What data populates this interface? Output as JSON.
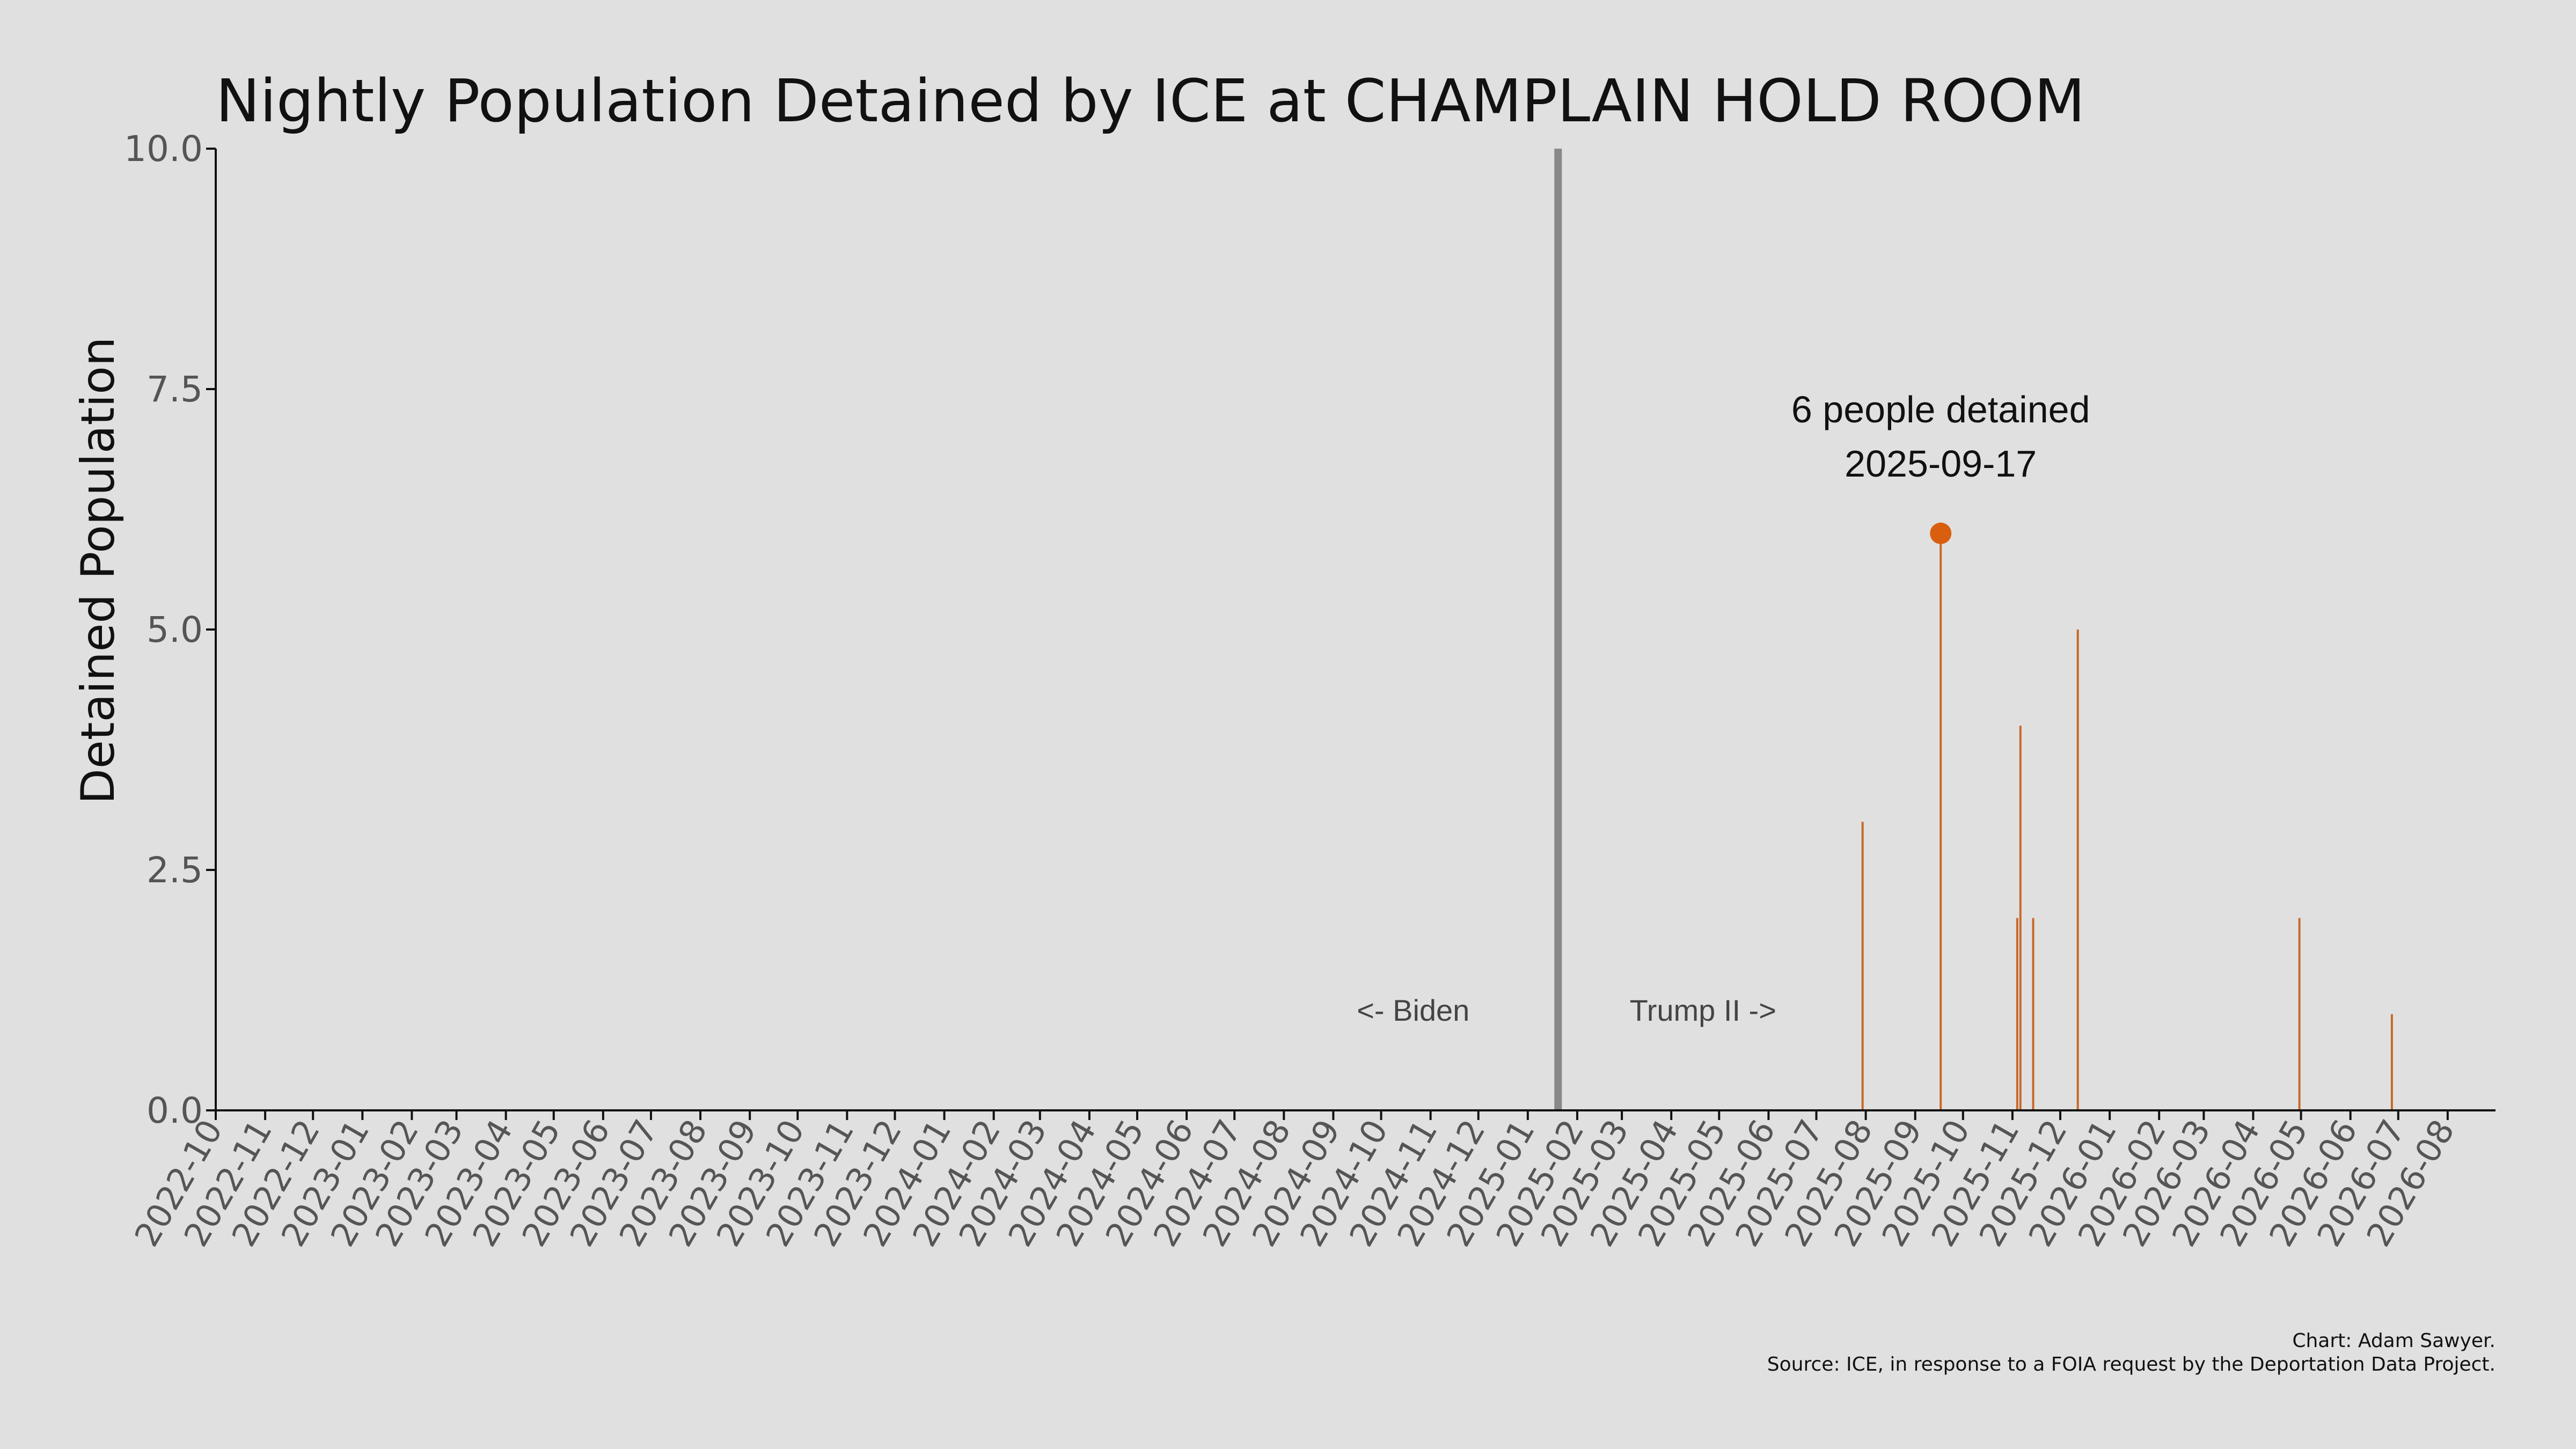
{
  "chart_data": {
    "type": "bar",
    "title": "Nightly Population Detained by ICE at CHAMPLAIN HOLD ROOM",
    "ylabel": "Detained Population",
    "xlabel": "",
    "ylim": [
      0,
      10
    ],
    "yticks": [
      "0.0",
      "2.5",
      "5.0",
      "7.5",
      "10.0"
    ],
    "xlim": [
      "2022-10-01",
      "2026-08-31"
    ],
    "xticks": [
      "2022-10",
      "2022-11",
      "2022-12",
      "2023-01",
      "2023-02",
      "2023-03",
      "2023-04",
      "2023-05",
      "2023-06",
      "2023-07",
      "2023-08",
      "2023-09",
      "2023-10",
      "2023-11",
      "2023-12",
      "2024-01",
      "2024-02",
      "2024-03",
      "2024-04",
      "2024-05",
      "2024-06",
      "2024-07",
      "2024-08",
      "2024-09",
      "2024-10",
      "2024-11",
      "2024-12",
      "2025-01",
      "2025-02",
      "2025-03",
      "2025-04",
      "2025-05",
      "2025-06",
      "2025-07",
      "2025-08",
      "2025-09",
      "2025-10",
      "2025-11",
      "2025-12",
      "2026-01",
      "2026-02",
      "2026-03",
      "2026-04",
      "2026-05",
      "2026-06",
      "2026-07",
      "2026-08"
    ],
    "grid": false,
    "bar_color": "#c8682a",
    "series": [
      {
        "x": [
          "2025-07-30",
          "2025-09-17",
          "2025-11-04",
          "2025-11-06",
          "2025-11-14",
          "2025-12-12",
          "2026-04-30",
          "2026-06-27"
        ],
        "values": [
          3,
          6,
          2,
          4,
          2,
          5,
          2,
          1
        ]
      }
    ],
    "divider": {
      "date": "2025-01-20",
      "color": "#888888",
      "left_label": "<- Biden",
      "right_label": "Trump II ->"
    },
    "highlight": {
      "date": "2025-09-17",
      "value": 6,
      "color": "#d95f0e",
      "label_line1": "6 people detained",
      "label_line2": "2025-09-17"
    },
    "credit_line1": "Chart: Adam Sawyer.",
    "credit_line2": "Source: ICE, in response to a FOIA request by the Deportation Data Project."
  }
}
